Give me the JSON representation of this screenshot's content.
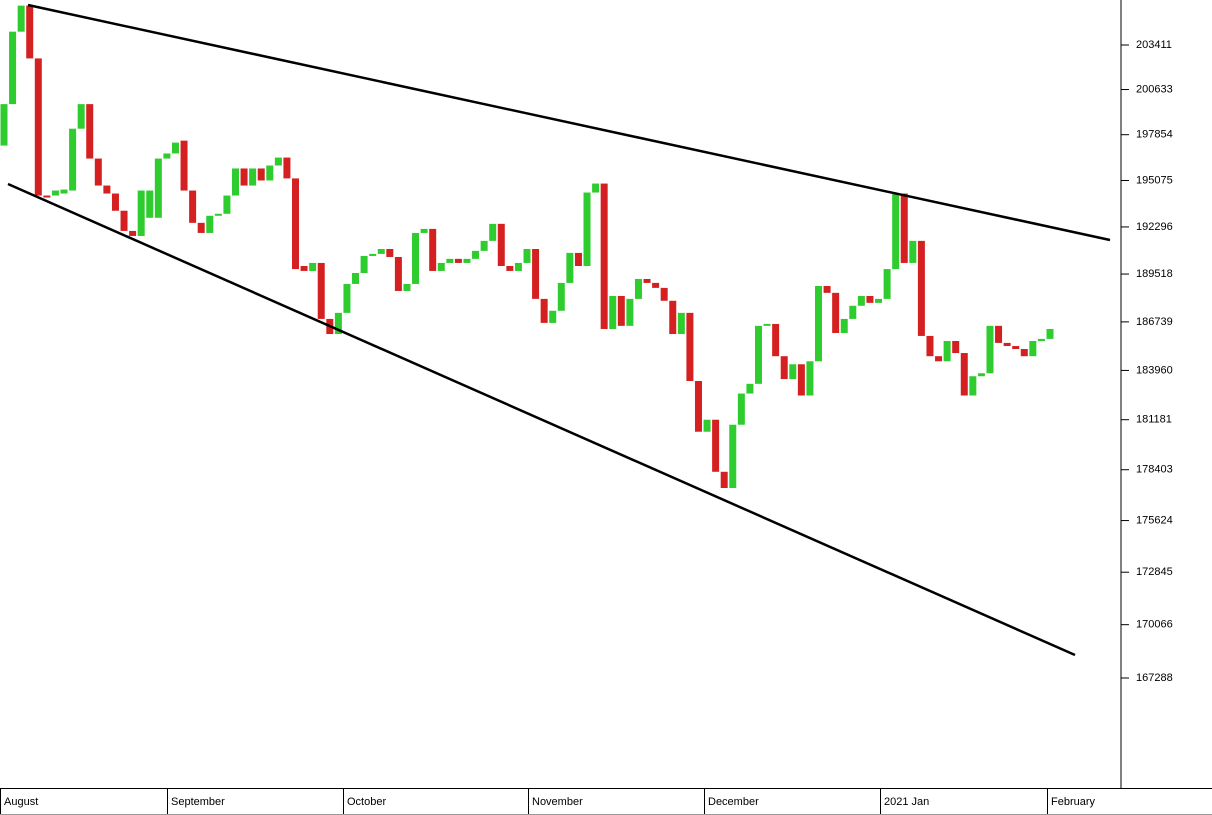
{
  "chart_data": {
    "type": "candlestick",
    "log": true,
    "up_color": "#2ecc2e",
    "down_color": "#d42020",
    "categories": [
      "August",
      "September",
      "October",
      "November",
      "December",
      "2021 Jan",
      "February"
    ],
    "ylim": [
      161700,
      205940
    ],
    "yticks": [
      203411,
      200633,
      197854,
      195075,
      192296,
      189518,
      186739,
      183960,
      181181,
      178403,
      175624,
      172845,
      170066,
      167288
    ],
    "open": [
      197190,
      199730,
      204250,
      205900,
      202570,
      194170,
      194170,
      194290,
      194470,
      198220,
      199730,
      196400,
      194770,
      194290,
      193260,
      192060,
      191760,
      192840,
      192840,
      196400,
      196710,
      197490,
      194470,
      192540,
      191940,
      192960,
      193080,
      194170,
      195800,
      194770,
      195800,
      195075,
      195980,
      196460,
      195200,
      189990,
      189700,
      190170,
      186910,
      186040,
      187260,
      188940,
      189580,
      190580,
      190700,
      190990,
      190520,
      188530,
      188940,
      191940,
      192180,
      189700,
      190170,
      190410,
      190170,
      190410,
      190880,
      191470,
      192480,
      189990,
      189700,
      190170,
      190990,
      188070,
      186680,
      187380,
      189000,
      190760,
      189990,
      194350,
      194890,
      186330,
      188240,
      186510,
      188070,
      189230,
      189000,
      188710,
      187960,
      186040,
      187260,
      183360,
      180510,
      181180,
      178290,
      177400,
      180900,
      182650,
      183200,
      186510,
      186620,
      184770,
      183470,
      184310,
      182540,
      184480,
      188820,
      188420,
      186100,
      186910,
      187670,
      188240,
      187840,
      188070,
      189810,
      194290,
      190170,
      191470,
      185930,
      184770,
      184480,
      185640,
      184950,
      182540,
      183630,
      183800,
      186510,
      185530,
      185350,
      185180,
      184770,
      185640,
      185760
    ],
    "close": [
      199730,
      204250,
      205900,
      202570,
      194170,
      194050,
      194470,
      194530,
      198220,
      199730,
      196400,
      194770,
      194290,
      193260,
      192060,
      191760,
      194470,
      194470,
      196400,
      196710,
      197370,
      194470,
      192540,
      191940,
      192960,
      193080,
      194170,
      195800,
      194770,
      195800,
      195075,
      195980,
      196460,
      195200,
      189810,
      189700,
      190170,
      186910,
      186040,
      187260,
      188940,
      189580,
      190580,
      190700,
      190990,
      190520,
      188530,
      188940,
      191940,
      192180,
      189700,
      190170,
      190410,
      190170,
      190410,
      190880,
      191470,
      192480,
      189990,
      189700,
      190170,
      190990,
      188070,
      186680,
      187380,
      189000,
      190760,
      189990,
      194350,
      194890,
      186330,
      188240,
      186510,
      188070,
      189230,
      189000,
      188710,
      187960,
      186040,
      187260,
      183360,
      180510,
      181180,
      178290,
      177400,
      180900,
      182650,
      183200,
      186510,
      186620,
      184770,
      183470,
      184310,
      182540,
      184480,
      188820,
      188420,
      186100,
      186910,
      187670,
      188240,
      187840,
      188070,
      189810,
      194290,
      190170,
      191470,
      185930,
      184770,
      184480,
      185640,
      184950,
      182540,
      183630,
      183800,
      186510,
      185530,
      185350,
      185180,
      184770,
      185640,
      185760,
      186330
    ]
  }
}
